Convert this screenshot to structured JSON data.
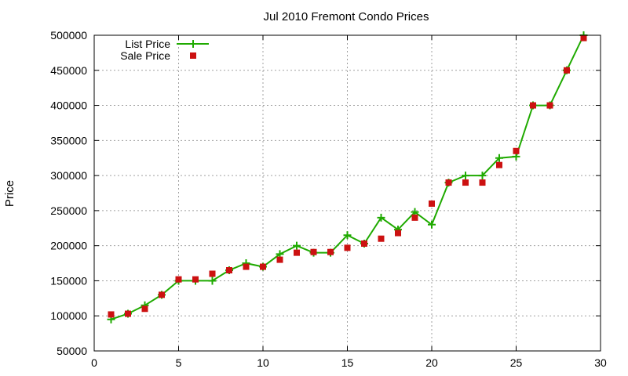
{
  "chart_data": {
    "type": "line",
    "title": "Jul 2010 Fremont Condo Prices",
    "xlabel": "",
    "ylabel": "Price",
    "xlim": [
      0,
      30
    ],
    "ylim": [
      50000,
      500000
    ],
    "xticks": [
      0,
      5,
      10,
      15,
      20,
      25,
      30
    ],
    "yticks": [
      50000,
      100000,
      150000,
      200000,
      250000,
      300000,
      350000,
      400000,
      450000,
      500000
    ],
    "grid": true,
    "legend_position": "top-left",
    "x": [
      1,
      2,
      3,
      4,
      5,
      6,
      7,
      8,
      9,
      10,
      11,
      12,
      13,
      14,
      15,
      16,
      17,
      18,
      19,
      20,
      21,
      22,
      23,
      24,
      25,
      26,
      27,
      28,
      29
    ],
    "series": [
      {
        "name": "List Price",
        "style": "line-plus",
        "color": "#1faa00",
        "values": [
          95000,
          103000,
          115000,
          130000,
          150000,
          150000,
          150000,
          165000,
          175000,
          170000,
          188000,
          200000,
          190000,
          190000,
          215000,
          203000,
          240000,
          223000,
          248000,
          230000,
          290000,
          300000,
          300000,
          325000,
          327000,
          400000,
          400000,
          450000,
          500000
        ]
      },
      {
        "name": "Sale Price",
        "style": "square-points",
        "color": "#cc1111",
        "values": [
          102000,
          103000,
          110000,
          130000,
          152000,
          152000,
          160000,
          165000,
          170000,
          170000,
          180000,
          190000,
          191000,
          191000,
          197000,
          203000,
          210000,
          218000,
          240000,
          260000,
          290000,
          290000,
          290000,
          315000,
          335000,
          400000,
          400000,
          450000,
          496000
        ]
      }
    ]
  }
}
